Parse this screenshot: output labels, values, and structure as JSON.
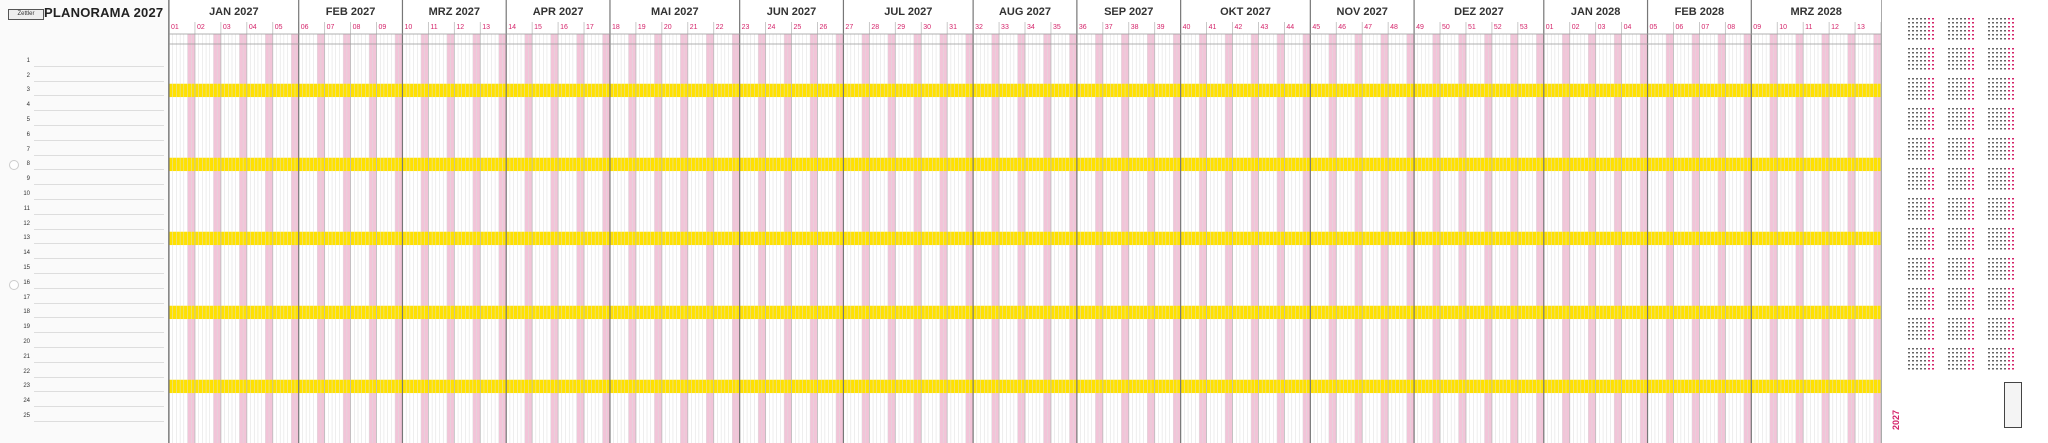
{
  "header": {
    "brand": "Zettler",
    "title": "PLANORAMA 2027"
  },
  "calendar": {
    "months": [
      {
        "label": "JAN 2027",
        "weeks": [
          "01",
          "02",
          "03",
          "04",
          "05"
        ]
      },
      {
        "label": "FEB 2027",
        "weeks": [
          "06",
          "07",
          "08",
          "09"
        ]
      },
      {
        "label": "MRZ 2027",
        "weeks": [
          "10",
          "11",
          "12",
          "13"
        ]
      },
      {
        "label": "APR 2027",
        "weeks": [
          "14",
          "15",
          "16",
          "17"
        ]
      },
      {
        "label": "MAI 2027",
        "weeks": [
          "18",
          "19",
          "20",
          "21",
          "22"
        ]
      },
      {
        "label": "JUN 2027",
        "weeks": [
          "23",
          "24",
          "25",
          "26"
        ]
      },
      {
        "label": "JUL 2027",
        "weeks": [
          "27",
          "28",
          "29",
          "30",
          "31"
        ]
      },
      {
        "label": "AUG 2027",
        "weeks": [
          "32",
          "33",
          "34",
          "35"
        ]
      },
      {
        "label": "SEP 2027",
        "weeks": [
          "36",
          "37",
          "38",
          "39"
        ]
      },
      {
        "label": "OKT 2027",
        "weeks": [
          "40",
          "41",
          "42",
          "43",
          "44"
        ]
      },
      {
        "label": "NOV 2027",
        "weeks": [
          "45",
          "46",
          "47",
          "48"
        ]
      },
      {
        "label": "DEZ 2027",
        "weeks": [
          "49",
          "50",
          "51",
          "52",
          "53"
        ]
      },
      {
        "label": "JAN 2028",
        "weeks": [
          "01",
          "02",
          "03",
          "04"
        ]
      },
      {
        "label": "FEB 2028",
        "weeks": [
          "05",
          "06",
          "07",
          "08"
        ]
      },
      {
        "label": "MRZ 2028",
        "weeks": [
          "09",
          "10",
          "11",
          "12",
          "13"
        ]
      }
    ],
    "rows": [
      "1",
      "2",
      "3",
      "4",
      "5",
      "6",
      "7",
      "8",
      "9",
      "10",
      "11",
      "12",
      "13",
      "14",
      "15",
      "16",
      "17",
      "18",
      "19",
      "20",
      "21",
      "22",
      "23",
      "24",
      "25"
    ],
    "highlight_rows": [
      "3",
      "8",
      "13",
      "18",
      "23"
    ]
  },
  "side_panel": {
    "year": "2027",
    "colors": {
      "accent": "#d4246a",
      "highlight": "#ffe100",
      "weekend": "#f2c4d8"
    }
  }
}
